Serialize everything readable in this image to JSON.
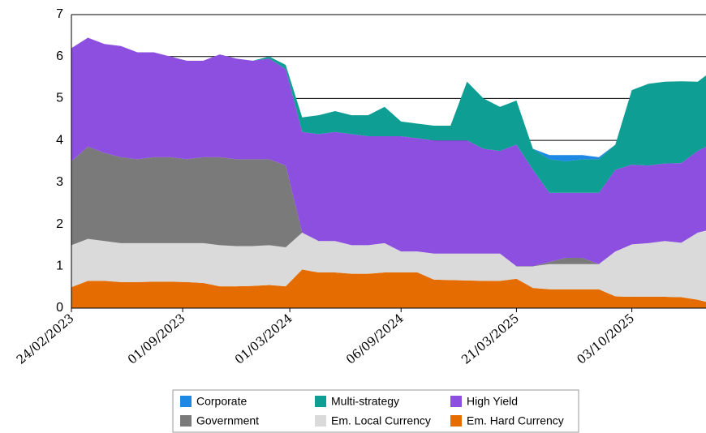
{
  "chart_data": {
    "type": "stacked_area",
    "x": [
      "24/02/2023",
      "24/03/2023",
      "21/04/2023",
      "19/05/2023",
      "16/06/2023",
      "14/07/2023",
      "11/08/2023",
      "08/09/2023",
      "06/10/2023",
      "03/11/2023",
      "01/12/2023",
      "29/12/2023",
      "26/01/2024",
      "23/02/2024",
      "22/03/2024",
      "19/04/2024",
      "17/05/2024",
      "14/06/2024",
      "12/07/2024",
      "09/08/2024",
      "06/09/2024",
      "04/10/2024",
      "01/11/2024",
      "29/11/2024",
      "27/12/2024",
      "24/01/2025",
      "21/02/2025",
      "21/03/2025",
      "18/04/2025",
      "16/05/2025",
      "13/06/2025",
      "11/07/2025",
      "08/08/2025",
      "05/09/2025",
      "03/10/2025",
      "31/10/2025",
      "28/11/2025",
      "26/12/2025",
      "23/01/2026",
      "06/02/2026"
    ],
    "series": [
      {
        "name": "Corporate",
        "color": "#1e88e5",
        "values": [
          0,
          0,
          0,
          0,
          0,
          0,
          0,
          0,
          0,
          0,
          0,
          0,
          0,
          0,
          0,
          0,
          0,
          0,
          0,
          0,
          0,
          0,
          0,
          0,
          0,
          0,
          0,
          0,
          0,
          0.1,
          0.15,
          0.1,
          0.05,
          0,
          0,
          0,
          0,
          0,
          0,
          0
        ]
      },
      {
        "name": "Multi-strategy",
        "color": "#0e9e94",
        "values": [
          0,
          0,
          0,
          0,
          0,
          0,
          0,
          0,
          0,
          0,
          0,
          0,
          0.05,
          0.1,
          0.35,
          0.45,
          0.5,
          0.45,
          0.5,
          0.7,
          0.35,
          0.35,
          0.35,
          0.35,
          1.4,
          1.2,
          1.05,
          1.05,
          0.5,
          0.8,
          0.75,
          0.8,
          0.8,
          0.6,
          1.78,
          1.95,
          1.95,
          1.95,
          1.65,
          1.7
        ]
      },
      {
        "name": "High Yield",
        "color": "#8c4fe0",
        "values": [
          2.7,
          2.6,
          2.6,
          2.65,
          2.55,
          2.5,
          2.4,
          2.35,
          2.3,
          2.45,
          2.4,
          2.35,
          2.4,
          2.3,
          2.4,
          2.55,
          2.6,
          2.65,
          2.6,
          2.55,
          2.75,
          2.7,
          2.7,
          2.7,
          2.7,
          2.5,
          2.45,
          2.9,
          2.3,
          1.65,
          1.55,
          1.55,
          1.7,
          1.95,
          1.9,
          1.85,
          1.85,
          1.9,
          1.95,
          2.0
        ]
      },
      {
        "name": "Government",
        "color": "#7a7a7a",
        "values": [
          2.0,
          2.2,
          2.1,
          2.05,
          2.0,
          2.05,
          2.05,
          2.0,
          2.05,
          2.1,
          2.07,
          2.07,
          2.05,
          1.95,
          0,
          0,
          0,
          0,
          0,
          0,
          0,
          0,
          0,
          0,
          0,
          0,
          0,
          0,
          0,
          0.05,
          0.15,
          0.15,
          0,
          0,
          0,
          0,
          0,
          0,
          0,
          0
        ]
      },
      {
        "name": "Em. Local Currency",
        "color": "#d9dad9",
        "values": [
          1.0,
          1.0,
          0.95,
          0.93,
          0.93,
          0.92,
          0.92,
          0.93,
          0.95,
          0.98,
          0.96,
          0.95,
          0.95,
          0.93,
          0.88,
          0.75,
          0.75,
          0.68,
          0.68,
          0.7,
          0.5,
          0.5,
          0.62,
          0.63,
          0.64,
          0.65,
          0.65,
          0.3,
          0.52,
          0.6,
          0.6,
          0.6,
          0.6,
          1.07,
          1.25,
          1.28,
          1.33,
          1.3,
          1.6,
          1.7
        ]
      },
      {
        "name": "Em. Hard Currency",
        "color": "#e56c00",
        "values": [
          0.5,
          0.65,
          0.65,
          0.62,
          0.62,
          0.63,
          0.63,
          0.62,
          0.6,
          0.52,
          0.52,
          0.53,
          0.55,
          0.52,
          0.92,
          0.85,
          0.85,
          0.82,
          0.82,
          0.85,
          0.85,
          0.85,
          0.68,
          0.67,
          0.66,
          0.65,
          0.65,
          0.7,
          0.48,
          0.45,
          0.45,
          0.45,
          0.45,
          0.28,
          0.27,
          0.27,
          0.27,
          0.26,
          0.2,
          0.15
        ]
      }
    ],
    "xlim": [
      "24/02/2023",
      "06/02/2026"
    ],
    "xticks": [
      "24/02/2023",
      "01/09/2023",
      "01/03/2024",
      "06/09/2024",
      "21/03/2025",
      "03/10/2025"
    ],
    "ylim": [
      0,
      7
    ],
    "yticks": [
      0,
      1,
      2,
      3,
      4,
      5,
      6,
      7
    ],
    "grid": true
  }
}
